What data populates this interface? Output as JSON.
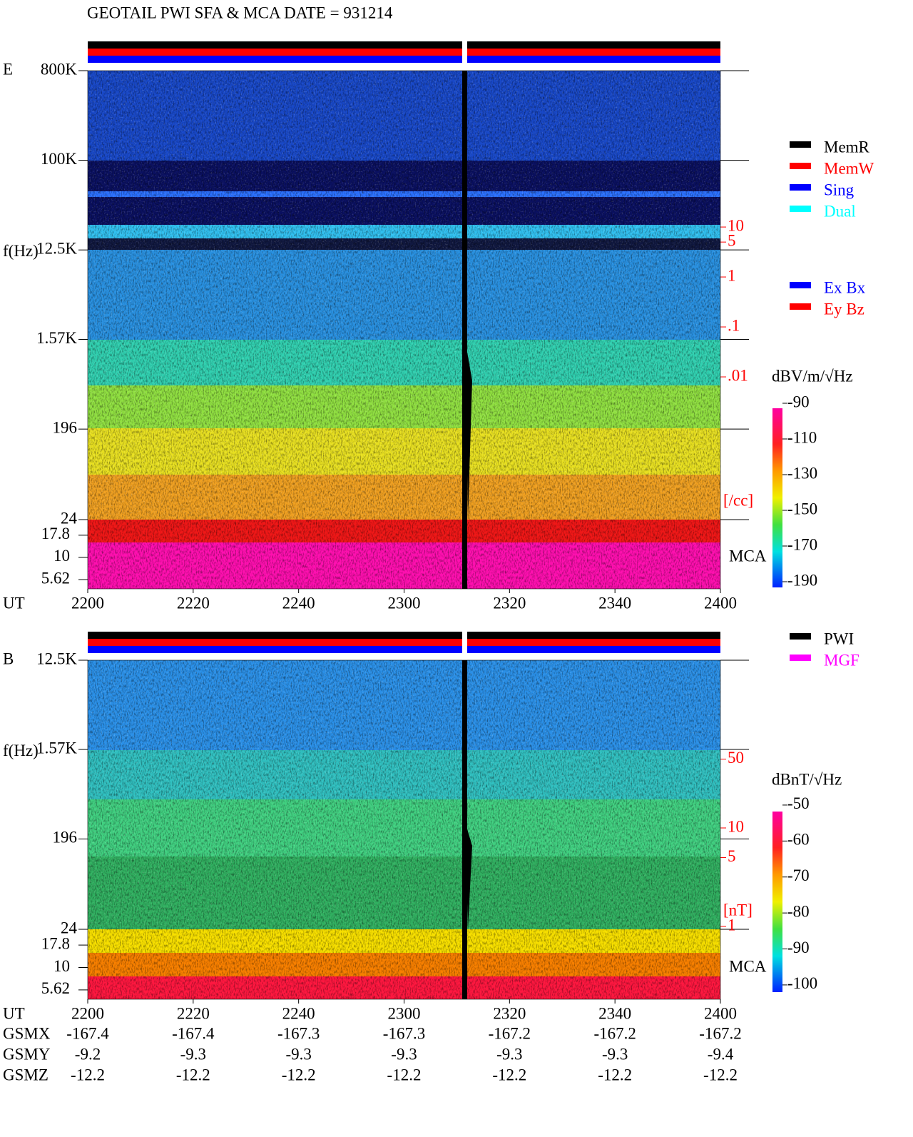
{
  "chart_data": [
    {
      "type": "spectrogram",
      "title": "GEOTAIL  PWI SFA & MCA   DATE = 931214",
      "panel": "E",
      "ylabel": "f(Hz)",
      "xlabel": "UT",
      "categories": [
        "2200",
        "2220",
        "2240",
        "2300",
        "2320",
        "2340",
        "2400"
      ],
      "log_y": true,
      "ylim": [
        24,
        800000
      ],
      "yticks": [
        {
          "value": 800000,
          "label": "800K"
        },
        {
          "value": 100000,
          "label": "100K"
        },
        {
          "value": 12500,
          "label": "12.5K"
        },
        {
          "value": 1570,
          "label": "1.57K"
        },
        196,
        24
      ],
      "mca_label": "MCA",
      "mca_ylim": [
        4.42,
        26.7
      ],
      "mca_yticks": [
        17.8,
        10,
        5.62
      ],
      "y2lim": [
        1.39e-05,
        13490
      ],
      "y2ticks": [
        10,
        5,
        1,
        {
          "value": 0.1,
          "label": ".1"
        },
        {
          "value": 0.01,
          "label": ".01"
        }
      ],
      "y2_unit": "[/cc]",
      "y2_color": "#ff0000",
      "colorbar": {
        "label": "dBV/m/√Hz",
        "lim": [
          -193.2,
          -92.8
        ],
        "ticks": [
          -90,
          -110,
          -130,
          -150,
          -170,
          -190
        ]
      },
      "legends": [
        [
          {
            "name": "MemR",
            "color": "#000000"
          },
          {
            "name": "MemW",
            "color": "#ff0000"
          },
          {
            "name": "Sing",
            "color": "#0000ff"
          },
          {
            "name": "Dual",
            "color": "#00ffff"
          }
        ],
        [
          {
            "name": "Ex Bx",
            "color": "#0000ff"
          },
          {
            "name": "Ey Bz",
            "color": "#ff0000"
          }
        ]
      ]
    },
    {
      "type": "spectrogram",
      "panel": "B",
      "ylabel": "f(Hz)",
      "xlabel": "UT",
      "categories": [
        "2200",
        "2220",
        "2240",
        "2300",
        "2320",
        "2340",
        "2400"
      ],
      "log_y": true,
      "ylim": [
        24,
        12500
      ],
      "yticks": [
        {
          "value": 12500,
          "label": "12.5K"
        },
        {
          "value": 1570,
          "label": "1.57K"
        },
        196,
        24
      ],
      "mca_label": "MCA",
      "mca_ylim": [
        4.42,
        26.7
      ],
      "mca_yticks": [
        17.8,
        10,
        5.62
      ],
      "y2lim": [
        0.935,
        505
      ],
      "y2ticks": [
        50,
        10,
        5,
        1
      ],
      "y2_unit": "[nT]",
      "y2_color": "#ff0000",
      "colorbar": {
        "label": "dBnT/√Hz",
        "lim": [
          -102,
          -51.8
        ],
        "ticks": [
          -50,
          -60,
          -70,
          -80,
          -90,
          -100
        ]
      },
      "legends": [
        [
          {
            "name": "PWI",
            "color": "#000000"
          },
          {
            "name": "MGF",
            "color": "#ff00ff"
          }
        ]
      ],
      "orbit": {
        "rows": [
          {
            "label": "GSMX",
            "values": [
              -167.4,
              -167.4,
              -167.3,
              -167.3,
              -167.2,
              -167.2,
              -167.2
            ]
          },
          {
            "label": "GSMY",
            "values": [
              -9.2,
              -9.3,
              -9.3,
              -9.3,
              -9.3,
              -9.3,
              -9.4
            ]
          },
          {
            "label": "GSMZ",
            "values": [
              -12.2,
              -12.2,
              -12.2,
              -12.2,
              -12.2,
              -12.2,
              -12.2
            ]
          }
        ]
      }
    }
  ]
}
